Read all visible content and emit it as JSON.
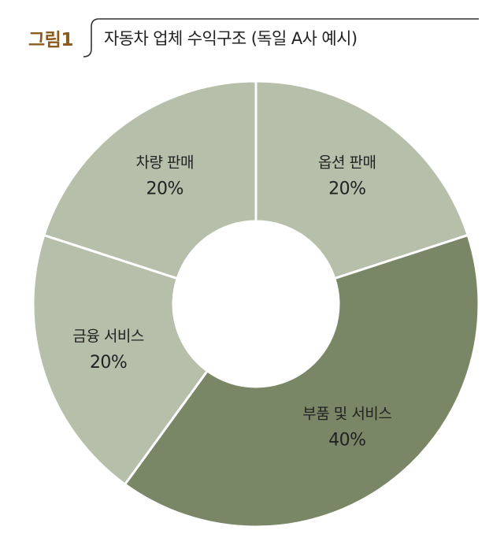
{
  "figure": {
    "label": "그림1",
    "title": "자동차 업체 수익구조 (독일 A사 예시)"
  },
  "colors": {
    "light_slice": "#b5bfaa",
    "dark_slice": "#7a8767",
    "separator": "#ffffff",
    "label_accent": "#8a5a1f",
    "bracket_line": "#333333"
  },
  "chart_data": {
    "type": "pie",
    "donut": true,
    "title": "자동차 업체 수익구조 (독일 A사 예시)",
    "slices": [
      {
        "label": "옵션 판매",
        "value": 20,
        "display": "20%",
        "color": "#b5bfaa"
      },
      {
        "label": "부품 및 서비스",
        "value": 40,
        "display": "40%",
        "color": "#7a8767"
      },
      {
        "label": "금융 서비스",
        "value": 20,
        "display": "20%",
        "color": "#b5bfaa"
      },
      {
        "label": "차량 판매",
        "value": 20,
        "display": "20%",
        "color": "#b5bfaa"
      }
    ],
    "start": "12 o'clock",
    "direction": "clockwise"
  }
}
